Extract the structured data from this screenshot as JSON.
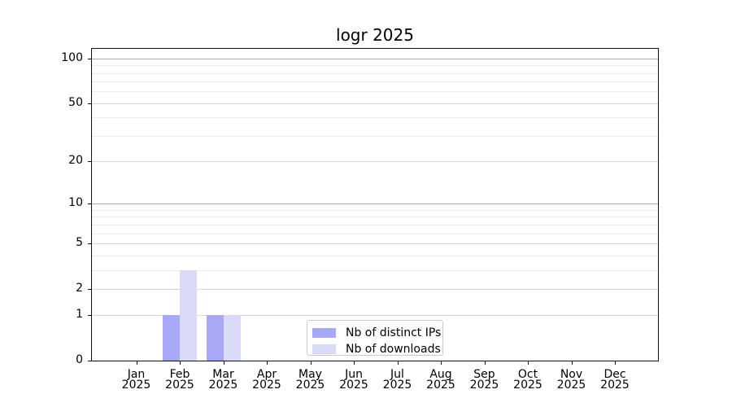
{
  "chart_data": {
    "type": "bar",
    "title": "logr 2025",
    "categories": [
      "Jan 2025",
      "Feb 2025",
      "Mar 2025",
      "Apr 2025",
      "May 2025",
      "Jun 2025",
      "Jul 2025",
      "Aug 2025",
      "Sep 2025",
      "Oct 2025",
      "Nov 2025",
      "Dec 2025"
    ],
    "series": [
      {
        "name": "Nb of distinct IPs",
        "color": "#a8a8f6",
        "values": [
          0,
          1,
          1,
          0,
          0,
          0,
          0,
          0,
          0,
          0,
          0,
          0
        ]
      },
      {
        "name": "Nb of downloads",
        "color": "#d9d9f8",
        "values": [
          0,
          3,
          1,
          0,
          0,
          0,
          0,
          0,
          0,
          0,
          0,
          0
        ]
      }
    ],
    "xlabel": "",
    "ylabel": "",
    "y_axis": {
      "scale": "log1p",
      "ylim": [
        0,
        117.6
      ],
      "tick_labels": [
        0,
        1,
        2,
        5,
        10,
        20,
        50,
        100
      ],
      "strong_gridlines": [
        10,
        100
      ],
      "labeled_gridlines": [
        1,
        2,
        5,
        20,
        50
      ],
      "minor_gridlines": [
        3,
        4,
        6,
        7,
        8,
        9,
        30,
        40,
        60,
        70,
        80,
        90
      ]
    },
    "legend_position": "lower center",
    "grid": true
  },
  "colors": {
    "grid_strong": "#ababab",
    "grid_major": "#d6d6d6",
    "grid_minor": "#ececec",
    "spine": "#111111",
    "legend_border": "#cccccc",
    "legend_background": "#ffffff",
    "background": "#ffffff"
  }
}
